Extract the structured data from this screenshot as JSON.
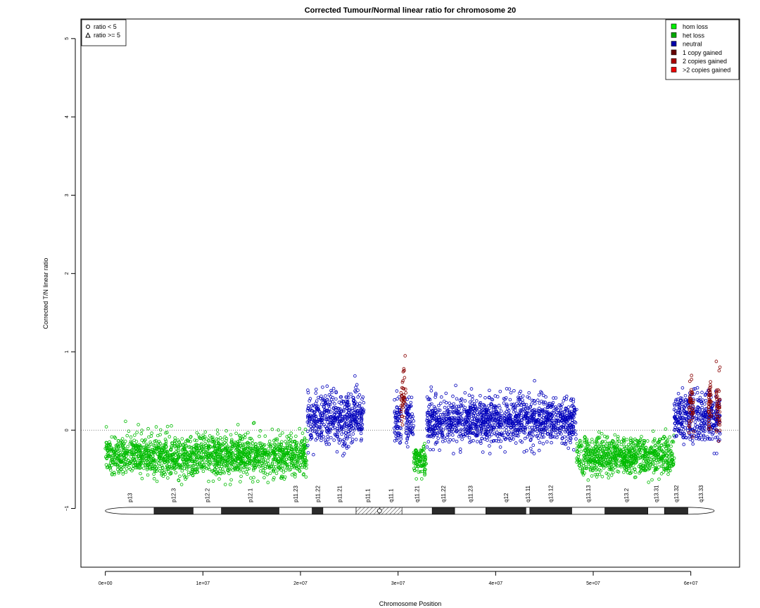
{
  "chart_data": {
    "type": "scatter",
    "title": "Corrected Tumour/Normal linear ratio for chromosome  20",
    "xlabel": "Chromosome Position",
    "ylabel": "Corrected T/N linear ratio",
    "xlim": [
      -2500000,
      65000000
    ],
    "ylim": [
      -1.75,
      5.25
    ],
    "x_ticks": [
      {
        "value": 0,
        "label": "0e+00"
      },
      {
        "value": 10000000,
        "label": "1e+07"
      },
      {
        "value": 20000000,
        "label": "2e+07"
      },
      {
        "value": 30000000,
        "label": "3e+07"
      },
      {
        "value": 40000000,
        "label": "4e+07"
      },
      {
        "value": 50000000,
        "label": "5e+07"
      },
      {
        "value": 60000000,
        "label": "6e+07"
      }
    ],
    "y_ticks": [
      {
        "value": -1,
        "label": "−1"
      },
      {
        "value": 0,
        "label": "0"
      },
      {
        "value": 1,
        "label": "1"
      },
      {
        "value": 2,
        "label": "2"
      },
      {
        "value": 3,
        "label": "3"
      },
      {
        "value": 4,
        "label": "4"
      },
      {
        "value": 5,
        "label": "5"
      }
    ],
    "reference_line": {
      "y": 0,
      "style": "dotted"
    },
    "shape_legend": {
      "placement": "top-left",
      "entries": [
        {
          "label": "ratio < 5",
          "shape": "circle"
        },
        {
          "label": "ratio >= 5",
          "shape": "triangle"
        }
      ]
    },
    "legend": {
      "placement": "top-right",
      "entries": [
        {
          "label": "hom loss",
          "color": "#00ee00"
        },
        {
          "label": "het loss",
          "color": "#00aa00"
        },
        {
          "label": "neutral",
          "color": "#0000aa"
        },
        {
          "label": "1 copy gained",
          "color": "#660000"
        },
        {
          "label": "2 copies gained",
          "color": "#aa0000"
        },
        {
          "label": ">2 copies gained",
          "color": "#ee0000"
        }
      ]
    },
    "segments": [
      {
        "state": "het loss",
        "color": "#00bb00",
        "start": 0,
        "end": 20700000,
        "mean": -0.33,
        "spread": 0.13
      },
      {
        "state": "neutral",
        "color": "#0000bb",
        "start": 20700000,
        "end": 26500000,
        "mean": 0.15,
        "spread": 0.17
      },
      {
        "state": "neutral",
        "color": "#0000bb",
        "start": 29600000,
        "end": 30300000,
        "mean": 0.1,
        "spread": 0.15
      },
      {
        "state": "1 copy gained",
        "color": "#880000",
        "start": 30300000,
        "end": 30800000,
        "mean": 0.4,
        "spread": 0.2
      },
      {
        "state": "neutral",
        "color": "#0000bb",
        "start": 30800000,
        "end": 31600000,
        "mean": 0.1,
        "spread": 0.15
      },
      {
        "state": "het loss",
        "color": "#00bb00",
        "start": 31600000,
        "end": 32900000,
        "mean": -0.37,
        "spread": 0.09
      },
      {
        "state": "neutral",
        "color": "#0000bb",
        "start": 32900000,
        "end": 48300000,
        "mean": 0.12,
        "spread": 0.15
      },
      {
        "state": "het loss",
        "color": "#00bb00",
        "start": 48300000,
        "end": 58300000,
        "mean": -0.33,
        "spread": 0.12
      },
      {
        "state": "neutral",
        "color": "#0000bb",
        "start": 58300000,
        "end": 63000000,
        "mean": 0.15,
        "spread": 0.16
      },
      {
        "state": "1 copy gained",
        "color": "#880000",
        "start": 59800000,
        "end": 60300000,
        "mean": 0.3,
        "spread": 0.2
      },
      {
        "state": "1 copy gained",
        "color": "#880000",
        "start": 61800000,
        "end": 62100000,
        "mean": 0.3,
        "spread": 0.15
      },
      {
        "state": "1 copy gained",
        "color": "#880000",
        "start": 62600000,
        "end": 63000000,
        "mean": 0.3,
        "spread": 0.2
      }
    ],
    "ideogram": {
      "y": -1.03,
      "bands": [
        {
          "name": "p13",
          "start": 0,
          "end": 5000000,
          "stain": "gneg"
        },
        {
          "name": "p12.3",
          "start": 5000000,
          "end": 9000000,
          "stain": "gpos"
        },
        {
          "name": "p12.2",
          "start": 9000000,
          "end": 11900000,
          "stain": "gneg"
        },
        {
          "name": "p12.1",
          "start": 11900000,
          "end": 17800000,
          "stain": "gpos"
        },
        {
          "name": "p11.23",
          "start": 17800000,
          "end": 21200000,
          "stain": "gneg"
        },
        {
          "name": "p11.22",
          "start": 21200000,
          "end": 22300000,
          "stain": "gpos"
        },
        {
          "name": "p11.21",
          "start": 22300000,
          "end": 25700000,
          "stain": "gneg"
        },
        {
          "name": "p11.1",
          "start": 25700000,
          "end": 28100000,
          "stain": "acen"
        },
        {
          "name": "q11.1",
          "start": 28100000,
          "end": 30400000,
          "stain": "acen"
        },
        {
          "name": "q11.21",
          "start": 30400000,
          "end": 33500000,
          "stain": "gneg"
        },
        {
          "name": "q11.22",
          "start": 33500000,
          "end": 35800000,
          "stain": "gpos"
        },
        {
          "name": "q11.23",
          "start": 35800000,
          "end": 39000000,
          "stain": "gneg"
        },
        {
          "name": "q12",
          "start": 39000000,
          "end": 43100000,
          "stain": "gpos"
        },
        {
          "name": "q13.11",
          "start": 43100000,
          "end": 43500000,
          "stain": "gneg"
        },
        {
          "name": "q13.12",
          "start": 43500000,
          "end": 47800000,
          "stain": "gpos"
        },
        {
          "name": "q13.13",
          "start": 47800000,
          "end": 51200000,
          "stain": "gneg"
        },
        {
          "name": "q13.2",
          "start": 51200000,
          "end": 55600000,
          "stain": "gpos"
        },
        {
          "name": "q13.31",
          "start": 55600000,
          "end": 57300000,
          "stain": "gneg"
        },
        {
          "name": "q13.32",
          "start": 57300000,
          "end": 59700000,
          "stain": "gpos"
        },
        {
          "name": "q13.33",
          "start": 59700000,
          "end": 62400000,
          "stain": "gneg"
        }
      ]
    }
  }
}
